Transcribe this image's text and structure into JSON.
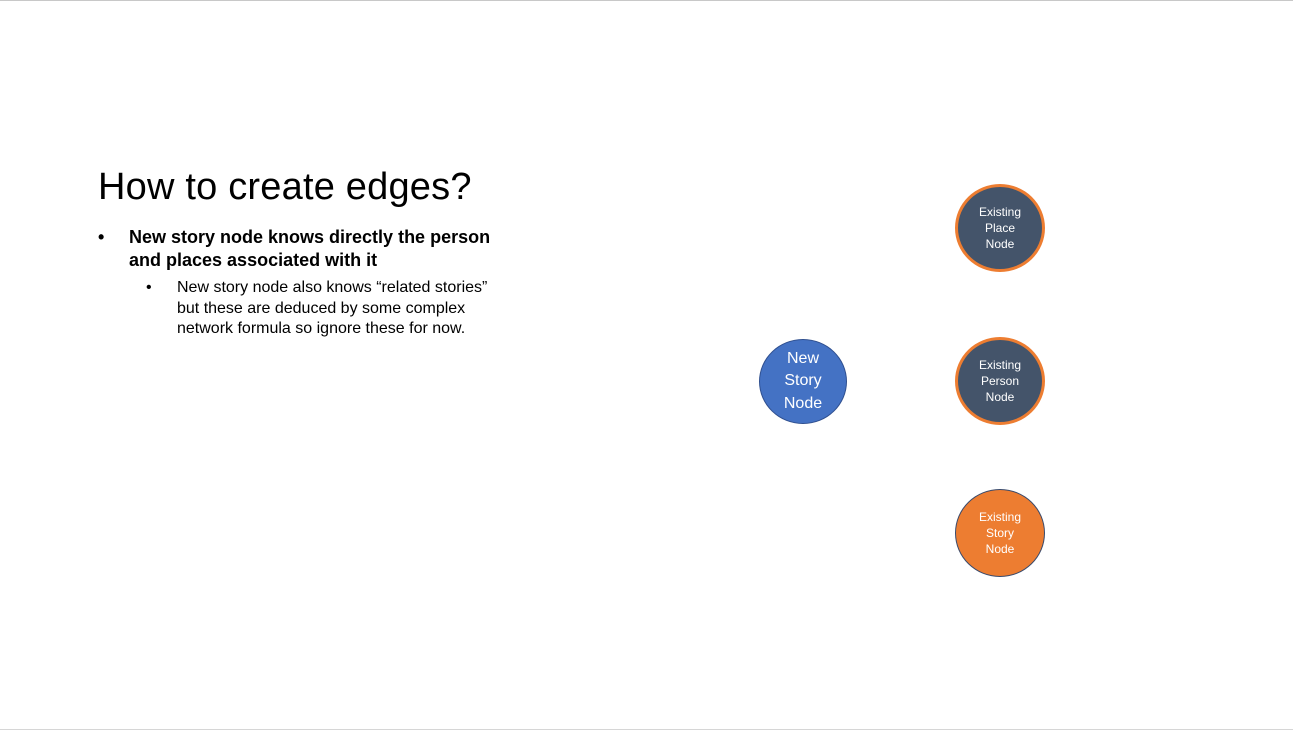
{
  "slide": {
    "title": "How to create edges?",
    "bullets": {
      "level1": {
        "marker": "•",
        "text": "New story node knows directly the person and places associated with it"
      },
      "level2": {
        "marker": "•",
        "text": "New story node also knows “related stories” but these are deduced by some complex network formula so ignore these for now."
      }
    }
  },
  "diagram": {
    "nodes": {
      "new_story": {
        "label": "New\nStory\nNode",
        "fill": "#4472c4",
        "stroke": "#2f4f8f"
      },
      "existing_place": {
        "label": "Existing\nPlace\nNode",
        "fill": "#44546a",
        "stroke": "#ed7d31"
      },
      "existing_person": {
        "label": "Existing\nPerson\nNode",
        "fill": "#44546a",
        "stroke": "#ed7d31"
      },
      "existing_story": {
        "label": "Existing\nStory\nNode",
        "fill": "#ed7d31",
        "stroke": "#3a4a6b"
      }
    }
  }
}
